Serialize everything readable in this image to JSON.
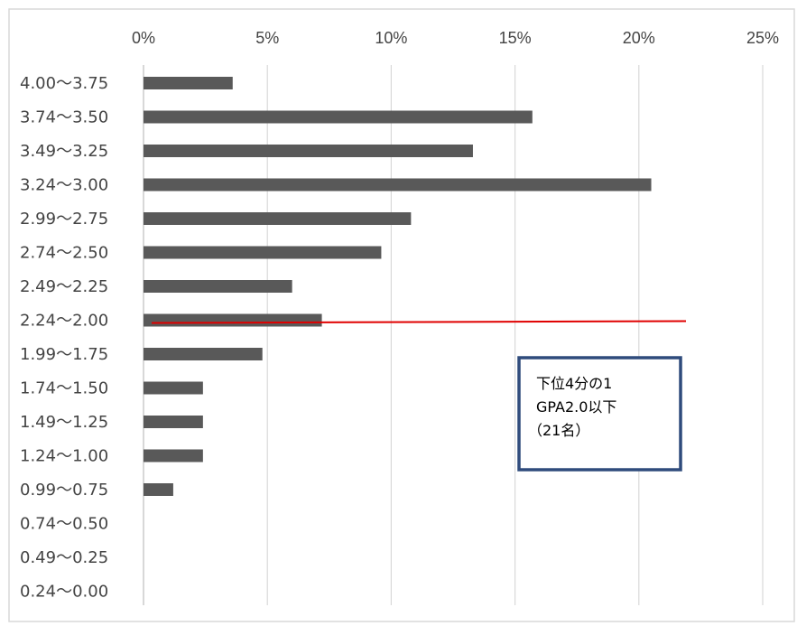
{
  "chart_data": {
    "type": "bar",
    "orientation": "horizontal",
    "categories": [
      "4.00〜3.75",
      "3.74〜3.50",
      "3.49〜3.25",
      "3.24〜3.00",
      "2.99〜2.75",
      "2.74〜2.50",
      "2.49〜2.25",
      "2.24〜2.00",
      "1.99〜1.75",
      "1.74〜1.50",
      "1.49〜1.25",
      "1.24〜1.00",
      "0.99〜0.75",
      "0.74〜0.50",
      "0.49〜0.25",
      "0.24〜0.00"
    ],
    "values": [
      3.6,
      15.7,
      13.3,
      20.5,
      10.8,
      9.6,
      6.0,
      7.2,
      4.8,
      2.4,
      2.4,
      2.4,
      1.2,
      0,
      0,
      0
    ],
    "x_ticks": [
      "0%",
      "5%",
      "10%",
      "15%",
      "20%",
      "25%"
    ],
    "xlim": [
      0,
      25
    ],
    "x_axis_position": "top",
    "grid": true,
    "bar_color": "#595959",
    "grid_color": "#d9d9d9",
    "annotation": {
      "lines": [
        "下位4分の1",
        "GPA2.0以下",
        "（21名）"
      ],
      "border_color": "#2f4b7c"
    },
    "reference_line": {
      "category": "2.24〜2.00",
      "color": "#e00000"
    }
  }
}
